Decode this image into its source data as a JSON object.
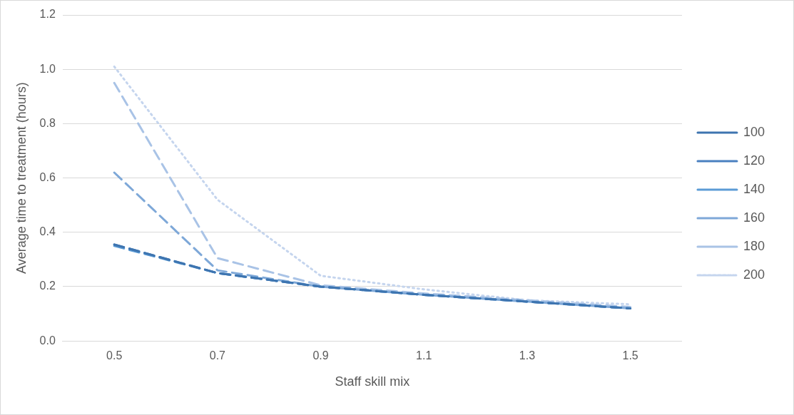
{
  "chart_data": {
    "type": "line",
    "xlabel": "Staff skill mix",
    "ylabel": "Average time to treatment (hours)",
    "categories": [
      "0.5",
      "0.7",
      "0.9",
      "1.1",
      "1.3",
      "1.5"
    ],
    "series": [
      {
        "name": "100",
        "color": "#3e75b0",
        "line_style": "dashed",
        "values": [
          0.355,
          0.25,
          0.2,
          0.17,
          0.145,
          0.12
        ]
      },
      {
        "name": "120",
        "color": "#4a80c0",
        "line_style": "dashed",
        "values": [
          0.355,
          0.25,
          0.2,
          0.17,
          0.145,
          0.12
        ]
      },
      {
        "name": "140",
        "color": "#5b9bd5",
        "line_style": "dashed",
        "values": [
          0.35,
          0.25,
          0.2,
          0.17,
          0.145,
          0.12
        ]
      },
      {
        "name": "160",
        "color": "#7ea8d8",
        "line_style": "dashed",
        "values": [
          0.62,
          0.26,
          0.2,
          0.17,
          0.145,
          0.12
        ]
      },
      {
        "name": "180",
        "color": "#a9c3e6",
        "line_style": "dashed",
        "values": [
          0.95,
          0.305,
          0.205,
          0.175,
          0.15,
          0.125
        ]
      },
      {
        "name": "200",
        "color": "#c5d5ee",
        "line_style": "dotted",
        "values": [
          1.01,
          0.52,
          0.24,
          0.19,
          0.15,
          0.135
        ]
      }
    ],
    "ylim": [
      0,
      1.2
    ],
    "yticks": [
      {
        "value": 0,
        "label": "0.0"
      },
      {
        "value": 0.2,
        "label": "0.2"
      },
      {
        "value": 0.4,
        "label": "0.4"
      },
      {
        "value": 0.6,
        "label": "0.6"
      },
      {
        "value": 0.8,
        "label": "0.8"
      },
      {
        "value": 1,
        "label": "1.0"
      },
      {
        "value": 1.2,
        "label": "1.2"
      }
    ],
    "grid": "y",
    "legend": "right",
    "marker": "none"
  }
}
